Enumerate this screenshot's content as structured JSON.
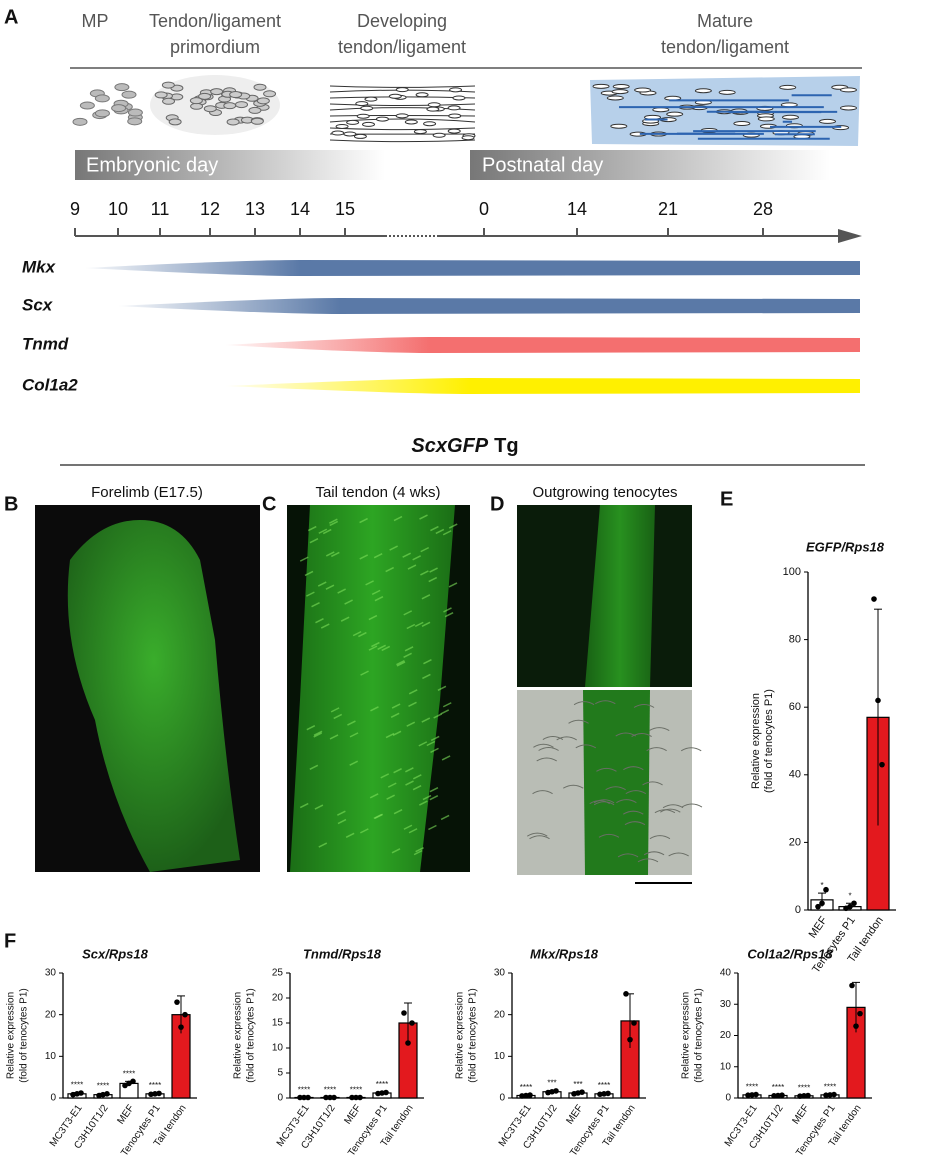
{
  "panel_labels": [
    "A",
    "B",
    "C",
    "D",
    "E",
    "F"
  ],
  "timeline": {
    "stages": [
      [
        "MP"
      ],
      [
        "Tendon/ligament",
        "primordium"
      ],
      [
        "Developing",
        "tendon/ligament"
      ],
      [
        "Mature",
        "tendon/ligament"
      ]
    ],
    "embryonic_label": "Embryonic day",
    "postnatal_label": "Postnatal day",
    "embryonic_days": [
      9,
      10,
      11,
      12,
      13,
      14,
      15
    ],
    "postnatal_days": [
      0,
      14,
      21,
      28
    ],
    "genes": [
      {
        "name": "Mkx",
        "color": "#5a79a7"
      },
      {
        "name": "Scx",
        "color": "#5a79a7"
      },
      {
        "name": "Tnmd",
        "color": "#f46f6f"
      },
      {
        "name": "Col1a2",
        "color": "#fff000"
      }
    ]
  },
  "section_title": {
    "gene": "ScxGFP",
    "suffix": "Tg"
  },
  "images": [
    {
      "caption": "Forelimb (E17.5)"
    },
    {
      "caption": "Tail tendon (4 wks)"
    },
    {
      "caption": "Outgrowing tenocytes"
    }
  ],
  "chart_data": [
    {
      "type": "bar",
      "title": "EGFP/Rps18",
      "ylabel": [
        "Relative expression",
        "(fold of tenocytes P1)"
      ],
      "categories": [
        "MEF",
        "Tenocytes P1",
        "Tail tendon"
      ],
      "values": [
        3,
        1,
        57
      ],
      "errors": [
        2,
        1,
        32
      ],
      "points": [
        [
          1,
          2,
          6
        ],
        [
          0.5,
          1,
          2
        ],
        [
          92,
          62,
          43
        ]
      ],
      "annotations": [
        "*",
        "*",
        null
      ],
      "colors": [
        "#ffffff",
        "#ffffff",
        "#e3191e"
      ],
      "ylim": [
        0,
        100
      ],
      "yticks": [
        0,
        20,
        40,
        60,
        80,
        100
      ]
    },
    {
      "type": "bar",
      "title": "Scx/Rps18",
      "ylabel": [
        "Relative expression",
        "(fold of tenocytes P1)"
      ],
      "categories": [
        "MC3T3-E1",
        "C3H10T1/2",
        "MEF",
        "Tenocytes P1",
        "Tail tendon"
      ],
      "values": [
        1,
        0.8,
        3.5,
        1,
        20
      ],
      "errors": [
        0.3,
        0.3,
        0.5,
        0.2,
        4.5
      ],
      "points": [
        [
          0.8,
          1,
          1.2
        ],
        [
          0.6,
          0.8,
          1
        ],
        [
          3,
          3.5,
          4
        ],
        [
          0.9,
          1,
          1.1
        ],
        [
          23,
          17,
          20
        ]
      ],
      "annotations": [
        "****",
        "****",
        "****",
        "****",
        null
      ],
      "colors": [
        "#ffffff",
        "#ffffff",
        "#ffffff",
        "#ffffff",
        "#e3191e"
      ],
      "ylim": [
        0,
        30
      ],
      "yticks": [
        0,
        10,
        20,
        30
      ]
    },
    {
      "type": "bar",
      "title": "Tnmd/Rps18",
      "ylabel": [
        "Relative expression",
        "(fold of tenocytes P1)"
      ],
      "categories": [
        "MC3T3-E1",
        "C3H10T1/2",
        "MEF",
        "Tenocytes P1",
        "Tail tendon"
      ],
      "values": [
        0.1,
        0.1,
        0.1,
        1,
        15
      ],
      "errors": [
        0.05,
        0.05,
        0.05,
        0.2,
        4
      ],
      "points": [
        [
          0.1,
          0.1,
          0.1
        ],
        [
          0.1,
          0.1,
          0.1
        ],
        [
          0.1,
          0.1,
          0.1
        ],
        [
          0.9,
          1,
          1.1
        ],
        [
          17,
          11,
          15
        ]
      ],
      "annotations": [
        "****",
        "****",
        "****",
        "****",
        null
      ],
      "colors": [
        "#ffffff",
        "#ffffff",
        "#ffffff",
        "#ffffff",
        "#e3191e"
      ],
      "ylim": [
        0,
        25
      ],
      "yticks": [
        0,
        5,
        10,
        15,
        20,
        25
      ]
    },
    {
      "type": "bar",
      "title": "Mkx/Rps18",
      "ylabel": [
        "Relative expression",
        "(fold of tenocytes P1)"
      ],
      "categories": [
        "MC3T3-E1",
        "C3H10T1/2",
        "MEF",
        "Tenocytes P1",
        "Tail tendon"
      ],
      "values": [
        0.6,
        1.5,
        1.2,
        1,
        18.5
      ],
      "errors": [
        0.2,
        0.3,
        0.3,
        0.2,
        6.5
      ],
      "points": [
        [
          0.5,
          0.6,
          0.7
        ],
        [
          1.3,
          1.5,
          1.7
        ],
        [
          1,
          1.2,
          1.4
        ],
        [
          0.9,
          1,
          1.1
        ],
        [
          25,
          14,
          18
        ]
      ],
      "annotations": [
        "****",
        "***",
        "***",
        "****",
        null
      ],
      "colors": [
        "#ffffff",
        "#ffffff",
        "#ffffff",
        "#ffffff",
        "#e3191e"
      ],
      "ylim": [
        0,
        30
      ],
      "yticks": [
        0,
        10,
        20,
        30
      ]
    },
    {
      "type": "bar",
      "title": "Col1a2/Rps18",
      "ylabel": [
        "Relative expression",
        "(fold of tenocytes P1)"
      ],
      "categories": [
        "MC3T3-E1",
        "C3H10T1/2",
        "MEF",
        "Tenocytes P1",
        "Tail tendon"
      ],
      "values": [
        1,
        0.8,
        0.7,
        1,
        29
      ],
      "errors": [
        0.2,
        0.2,
        0.2,
        0.2,
        8
      ],
      "points": [
        [
          0.9,
          1,
          1.1
        ],
        [
          0.7,
          0.8,
          0.9
        ],
        [
          0.6,
          0.7,
          0.8
        ],
        [
          0.9,
          1,
          1.1
        ],
        [
          36,
          23,
          27
        ]
      ],
      "annotations": [
        "****",
        "****",
        "****",
        "****",
        null
      ],
      "colors": [
        "#ffffff",
        "#ffffff",
        "#ffffff",
        "#ffffff",
        "#e3191e"
      ],
      "ylim": [
        0,
        40
      ],
      "yticks": [
        0,
        10,
        20,
        30,
        40
      ]
    }
  ]
}
